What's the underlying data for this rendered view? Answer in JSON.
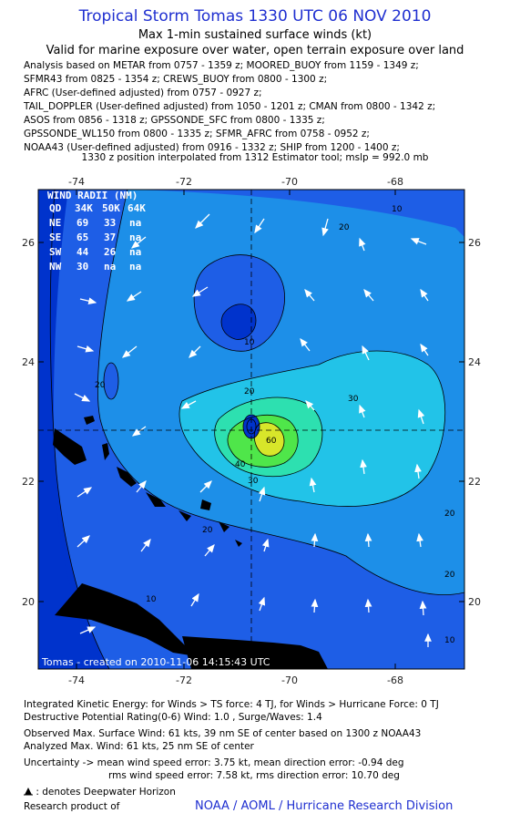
{
  "header": {
    "title": "Tropical Storm Tomas 1330 UTC 06 NOV 2010",
    "subtitle1": "Max 1-min sustained surface winds (kt)",
    "subtitle2": "Valid for marine exposure over water, open terrain exposure over land"
  },
  "sources": [
    "Analysis based on METAR from 0757 - 1359 z; MOORED_BUOY from 1159 - 1349 z;",
    "SFMR43 from 0825 - 1354 z; CREWS_BUOY from 0800 - 1300 z;",
    "AFRC (User-defined adjusted) from 0757 - 0927 z;",
    "TAIL_DOPPLER (User-defined adjusted) from 1050 - 1201 z; CMAN from 0800 - 1342 z;",
    "ASOS from 0856 - 1318 z; GPSSONDE_SFC from 0800 - 1335 z;",
    "GPSSONDE_WL150 from 0800 - 1335 z; SFMR_AFRC from 0758 - 0952 z;",
    "NOAA43 (User-defined adjusted) from 0916 - 1332 z; SHIP from 1200 - 1400 z;"
  ],
  "position_note": "1330 z position interpolated from 1312 Estimator tool; mslp = 992.0 mb",
  "map": {
    "lon_ticks": [
      "-74",
      "-72",
      "-70",
      "-68"
    ],
    "lat_ticks": [
      "26",
      "24",
      "22",
      "20"
    ],
    "contour_labels": [
      "10",
      "20",
      "20",
      "20",
      "20",
      "30",
      "30",
      "40",
      "20",
      "10",
      "10",
      "20",
      "10",
      "60"
    ],
    "center": {
      "lon": -70.8,
      "lat": 22.85
    },
    "credit": "Tomas - created on 2010-11-06 14:15:43 UTC",
    "colors": {
      "ocean_dark": "#0033cc",
      "c10": "#1e5ee6",
      "c20": "#1d8fe8",
      "c30": "#22c3e8",
      "c40": "#2de0b0",
      "c50": "#4fe64a",
      "c60": "#d8e62a",
      "land": "#000000"
    }
  },
  "wind_radii": {
    "title": "WIND RADII (NM)",
    "columns": [
      "QD",
      "34K",
      "50K",
      "64K"
    ],
    "rows": [
      [
        "NE",
        "69",
        "33",
        "na"
      ],
      [
        "SE",
        "65",
        "37",
        "na"
      ],
      [
        "SW",
        "44",
        "26",
        "na"
      ],
      [
        "NW",
        "30",
        "na",
        "na"
      ]
    ]
  },
  "footer": {
    "ike": "Integrated Kinetic Energy:  for Winds > TS force: 4 TJ,  for Winds > Hurricane Force: 0 TJ",
    "dpr": "Destructive Potential Rating(0-6)   Wind: 1.0 , Surge/Waves: 1.4",
    "observed": "Observed Max. Surface Wind: 61 kts, 39 nm SE of center based on 1300 z NOAA43",
    "analyzed": "Analyzed Max. Wind: 61 kts, 25 nm SE of center",
    "uncert1": "Uncertainty -> mean wind speed error: 3.75 kt,   mean direction error:  -0.94 deg",
    "uncert2": "rms wind speed error: 7.58 kt,   rms direction error: 10.70 deg",
    "dwh": ": denotes Deepwater Horizon",
    "research": "Research product of",
    "org": "NOAA / AOML / Hurricane Research Division"
  }
}
